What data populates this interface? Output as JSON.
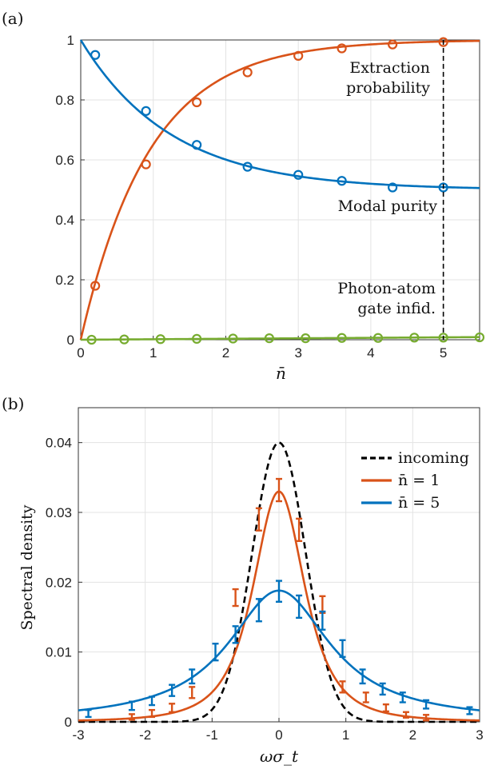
{
  "chart_data": [
    {
      "panel_label": "(a)",
      "type": "line",
      "xlabel": "n̄",
      "ylabel": "",
      "xlim": [
        0,
        5.5
      ],
      "ylim": [
        0,
        1
      ],
      "xticks": [
        "0",
        "1",
        "2",
        "3",
        "4",
        "5"
      ],
      "yticks": [
        "0",
        "0.2",
        "0.4",
        "0.6",
        "0.8",
        "1"
      ],
      "grid": true,
      "vline_x": 5,
      "annotations": {
        "extraction_1": "Extraction",
        "extraction_2": "probability",
        "purity": "Modal purity",
        "infid_1": "Photon-atom",
        "infid_2": "gate infid."
      },
      "series": [
        {
          "label_ref": "Extraction probability",
          "color": "#d95319",
          "markers_x": [
            0.2,
            0.9,
            1.6,
            2.3,
            3.0,
            3.6,
            4.3,
            5.0
          ],
          "markers_y": [
            0.18,
            0.585,
            0.792,
            0.892,
            0.947,
            0.972,
            0.985,
            0.993
          ]
        },
        {
          "label_ref": "Modal purity",
          "color": "#0072bd",
          "markers_x": [
            0.2,
            0.9,
            1.6,
            2.3,
            3.0,
            3.6,
            4.3,
            5.0
          ],
          "markers_y": [
            0.95,
            0.763,
            0.65,
            0.577,
            0.55,
            0.53,
            0.508,
            0.508
          ]
        },
        {
          "label_ref": "Photon-atom gate infid.",
          "color": "#77ac30",
          "markers_x": [
            0.15,
            0.6,
            1.1,
            1.6,
            2.1,
            2.6,
            3.1,
            3.6,
            4.1,
            4.6,
            5.0,
            5.5
          ],
          "markers_y": [
            0.0,
            0.001,
            0.002,
            0.003,
            0.004,
            0.005,
            0.005,
            0.006,
            0.006,
            0.007,
            0.007,
            0.008
          ]
        }
      ]
    },
    {
      "panel_label": "(b)",
      "type": "line",
      "xlabel": "ωσ_t",
      "ylabel": "Spectral density",
      "xlim": [
        -3,
        3
      ],
      "ylim": [
        0,
        0.045
      ],
      "xticks": [
        "-3",
        "-2",
        "-1",
        "0",
        "1",
        "2",
        "3"
      ],
      "yticks": [
        "0",
        "0.01",
        "0.02",
        "0.03",
        "0.04"
      ],
      "grid": true,
      "legend_position": "top-right",
      "series": [
        {
          "name": "incoming",
          "color": "#000000",
          "style": "dashed",
          "peak": 0.04
        },
        {
          "name": "n̄ = 1",
          "color": "#d95319",
          "peak": 0.033,
          "errorbars_x": [
            -2.2,
            -1.9,
            -1.6,
            -1.3,
            -0.65,
            -0.3,
            0.0,
            0.3,
            0.65,
            0.95,
            1.3,
            1.6,
            1.9,
            2.2
          ],
          "errorbars_y": [
            0.0007,
            0.0012,
            0.002,
            0.0042,
            0.0178,
            0.029,
            0.0332,
            0.0275,
            0.0168,
            0.005,
            0.0035,
            0.002,
            0.001,
            0.0006
          ],
          "errorbars_err": [
            0.0004,
            0.0005,
            0.0006,
            0.0008,
            0.0012,
            0.0016,
            0.0016,
            0.0016,
            0.0012,
            0.0008,
            0.0007,
            0.0005,
            0.0004,
            0.0004
          ]
        },
        {
          "name": "n̄ = 5",
          "color": "#0072bd",
          "peak": 0.0188,
          "errorbars_x": [
            -2.85,
            -2.2,
            -1.9,
            -1.6,
            -1.3,
            -0.95,
            -0.65,
            -0.3,
            0.0,
            0.3,
            0.65,
            0.95,
            1.25,
            1.55,
            1.85,
            2.2,
            2.85
          ],
          "errorbars_y": [
            0.0012,
            0.0023,
            0.003,
            0.0045,
            0.0065,
            0.01,
            0.0125,
            0.016,
            0.0187,
            0.0165,
            0.0145,
            0.0105,
            0.0065,
            0.0047,
            0.0035,
            0.0025,
            0.0016
          ],
          "errorbars_err": [
            0.0005,
            0.0006,
            0.0006,
            0.0008,
            0.001,
            0.0012,
            0.0012,
            0.0016,
            0.0015,
            0.0016,
            0.0013,
            0.0012,
            0.001,
            0.0008,
            0.0007,
            0.0006,
            0.0005
          ]
        }
      ]
    }
  ]
}
